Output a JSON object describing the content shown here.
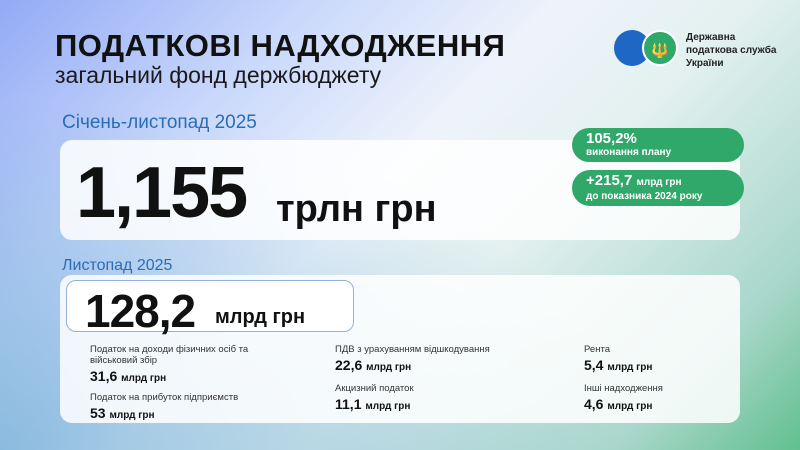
{
  "header": {
    "title": "ПОДАТКОВІ НАДХОДЖЕННЯ",
    "subtitle": "загальний фонд держбюджету"
  },
  "logo": {
    "text": "Державна податкова служба України",
    "emblem": "trident-icon",
    "colors": {
      "blue": "#1f67c4",
      "green": "#2fa86a"
    }
  },
  "ytd": {
    "period": "Січень-листопад 2025",
    "value": "1,155",
    "unit": "трлн грн",
    "plan": {
      "value": "105,2%",
      "label": "виконання плану"
    },
    "growth": {
      "value": "+215,7",
      "unit": "млрд грн",
      "label": "до показника 2024 року"
    }
  },
  "month": {
    "period": "Листопад 2025",
    "value": "128,2",
    "unit": "млрд грн",
    "items": [
      {
        "label": "Податок на доходи фізичних осіб та військовий збір",
        "value": "31,6",
        "unit": "млрд грн"
      },
      {
        "label": "Податок на прибуток підприємств",
        "value": "53",
        "unit": "млрд грн"
      },
      {
        "label": "ПДВ з урахуванням відшкодування",
        "value": "22,6",
        "unit": "млрд грн"
      },
      {
        "label": "Акцизний податок",
        "value": "11,1",
        "unit": "млрд грн"
      },
      {
        "label": "Рента",
        "value": "5,4",
        "unit": "млрд грн"
      },
      {
        "label": "Інші надходження",
        "value": "4,6",
        "unit": "млрд грн"
      }
    ]
  },
  "colors": {
    "accent_blue": "#2b6db5",
    "accent_green": "#2fa86a"
  }
}
